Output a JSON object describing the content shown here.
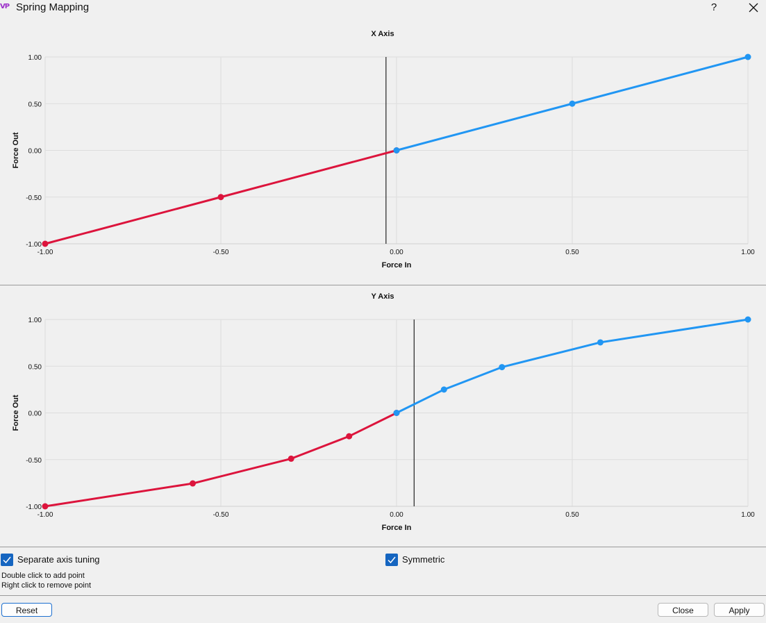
{
  "window": {
    "title": "Spring Mapping",
    "app_icon_text": "VP",
    "help_label": "?"
  },
  "charts": [
    {
      "title": "X Axis",
      "xlabel": "Force In",
      "ylabel": "Force Out",
      "xticks": [
        "-1.00",
        "-0.50",
        "0.00",
        "0.50",
        "1.00"
      ],
      "yticks": [
        "1.00",
        "0.50",
        "0.00",
        "-0.50",
        "-1.00"
      ]
    },
    {
      "title": "Y Axis",
      "xlabel": "Force In",
      "ylabel": "Force Out",
      "xticks": [
        "-1.00",
        "-0.50",
        "0.00",
        "0.50",
        "1.00"
      ],
      "yticks": [
        "1.00",
        "0.50",
        "0.00",
        "-0.50",
        "-1.00"
      ]
    }
  ],
  "chart_data": [
    {
      "type": "line",
      "title": "X Axis",
      "xlabel": "Force In",
      "ylabel": "Force Out",
      "xlim": [
        -1,
        1
      ],
      "ylim": [
        -1,
        1
      ],
      "grid": true,
      "cursor_x": -0.03,
      "series": [
        {
          "color": "#dc143c",
          "x": [
            -1.0,
            -0.5,
            0.0
          ],
          "y": [
            -1.0,
            -0.5,
            0.0
          ]
        },
        {
          "color": "#2196f3",
          "x": [
            0.0,
            0.5,
            1.0
          ],
          "y": [
            0.0,
            0.5,
            1.0
          ]
        }
      ]
    },
    {
      "type": "line",
      "title": "Y Axis",
      "xlabel": "Force In",
      "ylabel": "Force Out",
      "xlim": [
        -1,
        1
      ],
      "ylim": [
        -1,
        1
      ],
      "grid": true,
      "cursor_x": 0.05,
      "series": [
        {
          "color": "#dc143c",
          "x": [
            -1.0,
            -0.58,
            -0.3,
            -0.135,
            0.0
          ],
          "y": [
            -1.0,
            -0.755,
            -0.49,
            -0.25,
            0.0
          ]
        },
        {
          "color": "#2196f3",
          "x": [
            0.0,
            0.135,
            0.3,
            0.58,
            1.0
          ],
          "y": [
            0.0,
            0.25,
            0.49,
            0.755,
            1.0
          ]
        }
      ]
    }
  ],
  "options": {
    "separate_axis_label": "Separate axis tuning",
    "separate_axis_checked": true,
    "symmetric_label": "Symmetric",
    "symmetric_checked": true,
    "hint_add": "Double click to add point",
    "hint_remove": "Right click to remove point"
  },
  "buttons": {
    "reset": "Reset",
    "close": "Close",
    "apply": "Apply"
  },
  "colors": {
    "accent": "#1565c0",
    "negative_series": "#dc143c",
    "positive_series": "#2196f3"
  }
}
